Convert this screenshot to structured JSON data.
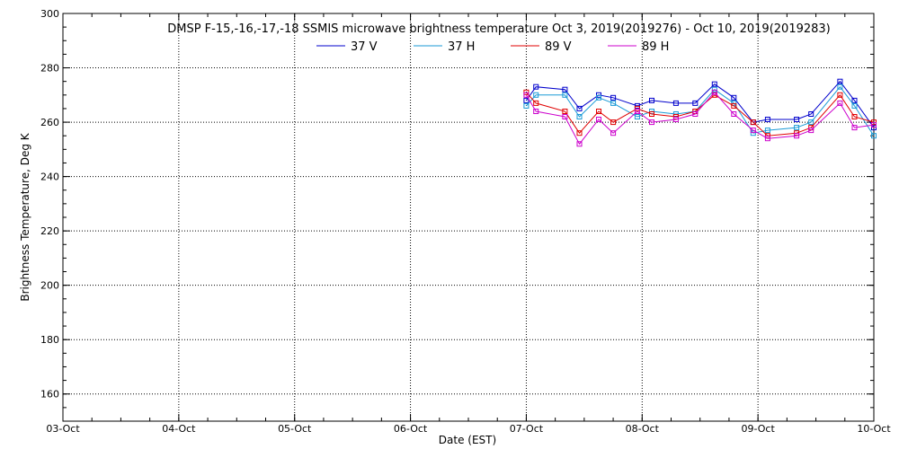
{
  "chart_data": {
    "type": "line",
    "title": "DMSP F-15,-16,-17,-18 SSMIS microwave brightness temperature Oct  3, 2019(2019276) - Oct 10, 2019(2019283)",
    "xlabel": "Date (EST)",
    "ylabel": "Brightness Temperature, Deg K",
    "xlim": [
      "2019-10-03",
      "2019-10-10"
    ],
    "ylim": [
      150,
      300
    ],
    "grid": true,
    "legend_position": "top",
    "categories": [
      "03-Oct",
      "04-Oct",
      "05-Oct",
      "06-Oct",
      "07-Oct",
      "08-Oct",
      "09-Oct",
      "10-Oct"
    ],
    "y_ticks": [
      160,
      180,
      200,
      220,
      240,
      260,
      280,
      300
    ],
    "x": [
      "2019-10-07 00:00",
      "2019-10-07 02:00",
      "2019-10-07 08:00",
      "2019-10-07 11:00",
      "2019-10-07 15:00",
      "2019-10-07 18:00",
      "2019-10-07 23:00",
      "2019-10-08 02:00",
      "2019-10-08 07:00",
      "2019-10-08 11:00",
      "2019-10-08 15:00",
      "2019-10-08 19:00",
      "2019-10-08 23:00",
      "2019-10-09 02:00",
      "2019-10-09 08:00",
      "2019-10-09 11:00",
      "2019-10-09 17:00",
      "2019-10-09 20:00",
      "2019-10-10 00:00"
    ],
    "series": [
      {
        "name": "37 V",
        "color": "#0000cc",
        "values": [
          268,
          273,
          272,
          265,
          270,
          269,
          266,
          268,
          267,
          267,
          274,
          269,
          260,
          261,
          261,
          263,
          275,
          268,
          258
        ]
      },
      {
        "name": "37 H",
        "color": "#1a9ad6",
        "values": [
          266,
          270,
          270,
          262,
          269,
          267,
          262,
          264,
          263,
          264,
          272,
          267,
          256,
          257,
          258,
          260,
          273,
          266,
          255
        ]
      },
      {
        "name": "89 V",
        "color": "#e00000",
        "values": [
          271,
          267,
          264,
          256,
          264,
          260,
          265,
          263,
          262,
          264,
          270,
          266,
          260,
          255,
          256,
          258,
          270,
          262,
          260
        ]
      },
      {
        "name": "89 H",
        "color": "#cc00cc",
        "values": [
          270,
          264,
          262,
          252,
          261,
          256,
          264,
          260,
          261,
          263,
          271,
          263,
          257,
          254,
          255,
          257,
          267,
          258,
          259
        ]
      }
    ]
  }
}
